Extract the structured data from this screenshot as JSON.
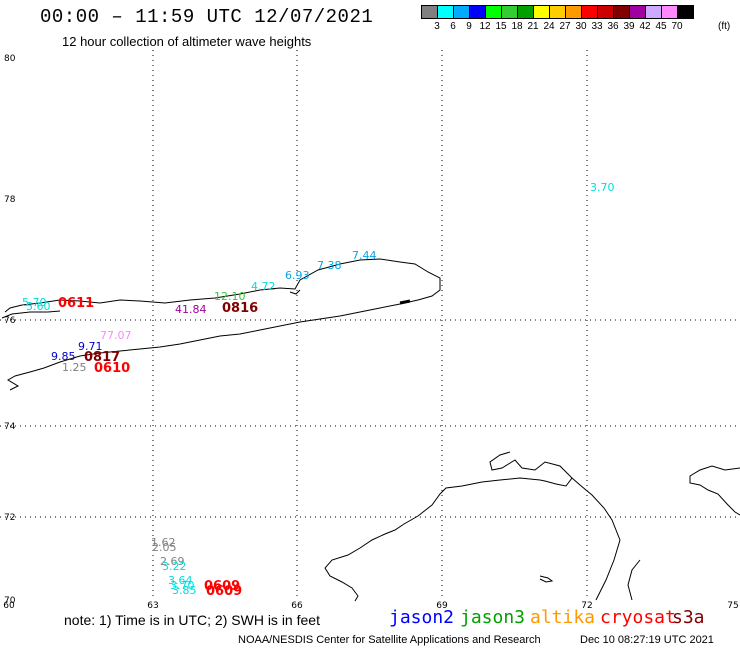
{
  "header": {
    "title": "00:00 – 11:59 UTC 12/07/2021",
    "subtitle": "12 hour collection of altimeter wave heights"
  },
  "colorbar": {
    "colors": [
      "#808080",
      "#00ffff",
      "#00aaff",
      "#0000ff",
      "#00ff00",
      "#33cc33",
      "#00a000",
      "#ffff00",
      "#ffcc00",
      "#ff9900",
      "#ff0000",
      "#cc0000",
      "#800000",
      "#a000a0",
      "#ccaaff",
      "#ff88ff",
      "#000000"
    ],
    "labels": [
      "3",
      "6",
      "9",
      "12",
      "15",
      "18",
      "21",
      "24",
      "27",
      "30",
      "33",
      "36",
      "39",
      "42",
      "45",
      "70"
    ],
    "unit": "(ft)"
  },
  "map": {
    "lat_labels": [
      "80",
      "78",
      "76",
      "74",
      "72",
      "70"
    ],
    "lon_labels": [
      "60",
      "63",
      "66",
      "69",
      "72",
      "75"
    ]
  },
  "observations": [
    {
      "text": "3.70",
      "color": "#00dddd",
      "kind": "value"
    },
    {
      "text": "7.44",
      "color": "#00a8e8",
      "kind": "value"
    },
    {
      "text": "7.38",
      "color": "#00a8e8",
      "kind": "value"
    },
    {
      "text": "6.93",
      "color": "#00a8e8",
      "kind": "value"
    },
    {
      "text": "4.72",
      "color": "#00dddd",
      "kind": "value"
    },
    {
      "text": "12.10",
      "color": "#33cc33",
      "kind": "value"
    },
    {
      "text": "41.84",
      "color": "#a000a0",
      "kind": "value"
    },
    {
      "text": "0816",
      "color": "#800000",
      "kind": "id"
    },
    {
      "text": "5.70",
      "color": "#00dddd",
      "kind": "value"
    },
    {
      "text": "5.60",
      "color": "#00dddd",
      "kind": "value"
    },
    {
      "text": "0611",
      "color": "#ff0000",
      "kind": "id"
    },
    {
      "text": "77.07",
      "color": "#ff88ff",
      "kind": "value"
    },
    {
      "text": "9.71",
      "color": "#0000cc",
      "kind": "value"
    },
    {
      "text": "9.85",
      "color": "#0000cc",
      "kind": "value"
    },
    {
      "text": "0817",
      "color": "#800000",
      "kind": "id"
    },
    {
      "text": "1.25",
      "color": "#808080",
      "kind": "value"
    },
    {
      "text": "0610",
      "color": "#ff0000",
      "kind": "id"
    },
    {
      "text": "1.62",
      "color": "#808080",
      "kind": "value"
    },
    {
      "text": "2.05",
      "color": "#808080",
      "kind": "value"
    },
    {
      "text": "2.69",
      "color": "#808080",
      "kind": "value"
    },
    {
      "text": "3.22",
      "color": "#00dddd",
      "kind": "value"
    },
    {
      "text": "3.64",
      "color": "#00dddd",
      "kind": "value"
    },
    {
      "text": "3.70",
      "color": "#00dddd",
      "kind": "value"
    },
    {
      "text": "3.85",
      "color": "#00dddd",
      "kind": "value"
    },
    {
      "text": "0609",
      "color": "#ff0000",
      "kind": "id"
    },
    {
      "text": "0609",
      "color": "#ff0000",
      "kind": "id"
    }
  ],
  "footer": {
    "note": "note:  1) Time is in UTC;  2) SWH is in feet",
    "legend": [
      {
        "name": "jason2",
        "color": "#0000ff"
      },
      {
        "name": "jason3",
        "color": "#00a000"
      },
      {
        "name": "altika",
        "color": "#ff9900"
      },
      {
        "name": "cryosat",
        "color": "#ff0000"
      },
      {
        "name": "s3a",
        "color": "#800000"
      }
    ],
    "credit": "NOAA/NESDIS Center for Satellite Applications and Research",
    "timestamp": "Dec 10 08:27:19 UTC 2021"
  }
}
